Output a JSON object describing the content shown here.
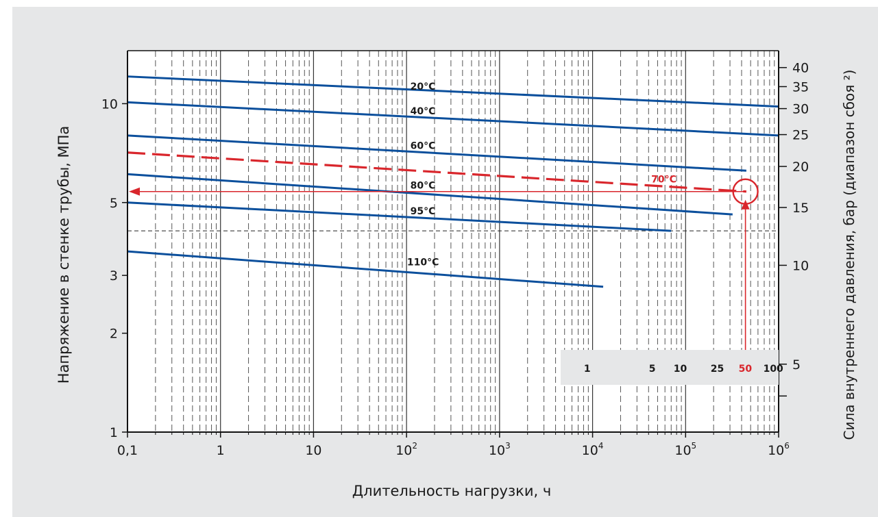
{
  "colors": {
    "background": "#e6e7e8",
    "plot_background": "#ffffff",
    "curve": "#0b4f9c",
    "highlight": "#d9262c"
  },
  "chart_data": {
    "type": "line",
    "xlabel": "Длительность нагрузки, ч",
    "ylabel": "Напряжение в стенке трубы, МПа",
    "ylabel_right": "Сила внутреннего давления, бар (диапазон сбоя ²)",
    "x_scale": "log",
    "y_scale": "log",
    "xlim": [
      0.1,
      1000000
    ],
    "ylim": [
      1,
      14.5
    ],
    "x_ticks": [
      {
        "value": 0.1,
        "label": "0,1"
      },
      {
        "value": 1,
        "label": "1"
      },
      {
        "value": 10,
        "label": "10"
      },
      {
        "value": 100,
        "label": "10",
        "exp": "2"
      },
      {
        "value": 1000,
        "label": "10",
        "exp": "3"
      },
      {
        "value": 10000,
        "label": "10",
        "exp": "4"
      },
      {
        "value": 100000,
        "label": "10",
        "exp": "5"
      },
      {
        "value": 1000000,
        "label": "10",
        "exp": "6"
      }
    ],
    "y_ticks": [
      {
        "value": 1,
        "label": "1"
      },
      {
        "value": 2,
        "label": "2"
      },
      {
        "value": 3,
        "label": "3"
      },
      {
        "value": 5,
        "label": "5"
      },
      {
        "value": 10,
        "label": "10"
      }
    ],
    "y_right_ticks": [
      {
        "value": 40,
        "label": "40"
      },
      {
        "value": 35,
        "label": "35"
      },
      {
        "value": 30,
        "label": "30"
      },
      {
        "value": 25,
        "label": "25"
      },
      {
        "value": 20,
        "label": "20"
      },
      {
        "value": 15,
        "label": "15"
      },
      {
        "value": 10,
        "label": "10"
      },
      {
        "value": 5,
        "label": "5"
      },
      {
        "value": 4,
        "label": ""
      }
    ],
    "series": [
      {
        "name": "20°C",
        "x": [
          0.1,
          1000000
        ],
        "y": [
          12.1,
          9.8
        ],
        "label_x": 130,
        "label_y": 11.3
      },
      {
        "name": "40°C",
        "x": [
          0.1,
          1000000
        ],
        "y": [
          10.1,
          8.0
        ],
        "label_x": 130,
        "label_y": 9.5
      },
      {
        "name": "60°C",
        "x": [
          0.1,
          450000
        ],
        "y": [
          8.0,
          6.25
        ],
        "label_x": 130,
        "label_y": 7.45
      },
      {
        "name": "80°C",
        "x": [
          0.1,
          320000
        ],
        "y": [
          6.1,
          4.6
        ],
        "label_x": 130,
        "label_y": 5.65
      },
      {
        "name": "95°C",
        "x": [
          0.1,
          70000
        ],
        "y": [
          5.0,
          4.1
        ],
        "label_x": 130,
        "label_y": 4.72
      },
      {
        "name": "110°C",
        "x": [
          0.1,
          13000
        ],
        "y": [
          3.55,
          2.77
        ],
        "label_x": 120,
        "label_y": 3.3
      }
    ],
    "highlight_series": {
      "name": "70°C",
      "x": [
        0.1,
        450000
      ],
      "y": [
        7.1,
        5.4
      ],
      "label_x": 60000,
      "label_y": 5.9
    },
    "reference_line_y": 4.1,
    "example": {
      "years": "50",
      "x_hours": 440000,
      "y": 5.4
    },
    "lifetime_scale": {
      "unit": "years",
      "labels": [
        {
          "value": 1,
          "text": "1"
        },
        {
          "value": 5,
          "text": "5"
        },
        {
          "value": 10,
          "text": "10"
        },
        {
          "value": 25,
          "text": "25"
        },
        {
          "value": 50,
          "text": "50",
          "highlight": true
        },
        {
          "value": 100,
          "text": "100"
        }
      ]
    }
  }
}
